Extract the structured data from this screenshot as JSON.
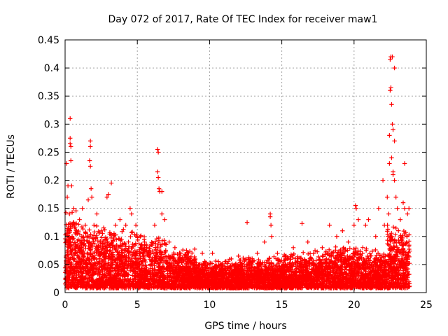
{
  "chart_data": {
    "type": "scatter",
    "title": "Day 072 of 2017, Rate Of TEC Index for receiver maw1",
    "xlabel": "GPS time / hours",
    "ylabel": "ROTI / TECUs",
    "xlim": [
      0,
      25
    ],
    "ylim": [
      0,
      0.45
    ],
    "x_ticks": [
      0,
      5,
      10,
      15,
      20,
      25
    ],
    "y_ticks": [
      0,
      0.05,
      0.1,
      0.15,
      0.2,
      0.25,
      0.3,
      0.35,
      0.4,
      0.45
    ],
    "x_tick_labels": [
      "0",
      "5",
      "10",
      "15",
      "20",
      "25"
    ],
    "y_tick_labels": [
      "0",
      "0.05",
      "0.1",
      "0.15",
      "0.2",
      "0.25",
      "0.3",
      "0.35",
      "0.4",
      "0.45"
    ],
    "grid": true,
    "marker": "+",
    "marker_color": "#ff0000",
    "series": [
      {
        "name": "ROTI",
        "points": [
          [
            0.1,
            0.23
          ],
          [
            0.15,
            0.17
          ],
          [
            0.2,
            0.19
          ],
          [
            0.3,
            0.14
          ],
          [
            0.35,
            0.31
          ],
          [
            0.35,
            0.275
          ],
          [
            0.35,
            0.265
          ],
          [
            0.4,
            0.26
          ],
          [
            0.4,
            0.235
          ],
          [
            0.45,
            0.19
          ],
          [
            0.5,
            0.12
          ],
          [
            0.6,
            0.15
          ],
          [
            0.8,
            0.11
          ],
          [
            1.0,
            0.13
          ],
          [
            1.2,
            0.15
          ],
          [
            1.4,
            0.12
          ],
          [
            1.6,
            0.165
          ],
          [
            1.75,
            0.27
          ],
          [
            1.75,
            0.26
          ],
          [
            1.7,
            0.235
          ],
          [
            1.75,
            0.225
          ],
          [
            1.8,
            0.185
          ],
          [
            1.85,
            0.17
          ],
          [
            2.0,
            0.12
          ],
          [
            2.2,
            0.14
          ],
          [
            2.5,
            0.11
          ],
          [
            2.9,
            0.17
          ],
          [
            3.0,
            0.175
          ],
          [
            3.2,
            0.195
          ],
          [
            3.5,
            0.12
          ],
          [
            3.8,
            0.13
          ],
          [
            4.2,
            0.12
          ],
          [
            4.5,
            0.15
          ],
          [
            4.6,
            0.14
          ],
          [
            4.9,
            0.12
          ],
          [
            5.2,
            0.1
          ],
          [
            5.5,
            0.09
          ],
          [
            6.2,
            0.12
          ],
          [
            6.4,
            0.255
          ],
          [
            6.45,
            0.25
          ],
          [
            6.4,
            0.215
          ],
          [
            6.45,
            0.205
          ],
          [
            6.5,
            0.185
          ],
          [
            6.55,
            0.18
          ],
          [
            6.7,
            0.18
          ],
          [
            6.7,
            0.14
          ],
          [
            6.9,
            0.13
          ],
          [
            7.2,
            0.09
          ],
          [
            7.6,
            0.08
          ],
          [
            8.0,
            0.07
          ],
          [
            8.4,
            0.075
          ],
          [
            9.0,
            0.06
          ],
          [
            9.5,
            0.07
          ],
          [
            10.2,
            0.07
          ],
          [
            10.8,
            0.05
          ],
          [
            11.5,
            0.06
          ],
          [
            12.0,
            0.065
          ],
          [
            12.6,
            0.125
          ],
          [
            12.8,
            0.06
          ],
          [
            13.3,
            0.07
          ],
          [
            13.8,
            0.09
          ],
          [
            14.2,
            0.14
          ],
          [
            14.2,
            0.135
          ],
          [
            14.25,
            0.12
          ],
          [
            14.3,
            0.1
          ],
          [
            14.7,
            0.07
          ],
          [
            15.3,
            0.065
          ],
          [
            15.8,
            0.08
          ],
          [
            16.4,
            0.123
          ],
          [
            16.8,
            0.09
          ],
          [
            17.3,
            0.075
          ],
          [
            17.8,
            0.08
          ],
          [
            18.3,
            0.12
          ],
          [
            18.8,
            0.1
          ],
          [
            19.2,
            0.11
          ],
          [
            19.6,
            0.09
          ],
          [
            20.0,
            0.12
          ],
          [
            20.1,
            0.155
          ],
          [
            20.15,
            0.15
          ],
          [
            20.3,
            0.13
          ],
          [
            20.8,
            0.12
          ],
          [
            21.0,
            0.13
          ],
          [
            21.5,
            0.1
          ],
          [
            21.7,
            0.15
          ],
          [
            22.0,
            0.2
          ],
          [
            22.1,
            0.12
          ],
          [
            22.3,
            0.17
          ],
          [
            22.4,
            0.14
          ],
          [
            22.45,
            0.23
          ],
          [
            22.45,
            0.28
          ],
          [
            22.5,
            0.36
          ],
          [
            22.55,
            0.365
          ],
          [
            22.5,
            0.415
          ],
          [
            22.55,
            0.42
          ],
          [
            22.65,
            0.42
          ],
          [
            22.6,
            0.335
          ],
          [
            22.65,
            0.3
          ],
          [
            22.7,
            0.29
          ],
          [
            22.8,
            0.4
          ],
          [
            22.8,
            0.27
          ],
          [
            22.6,
            0.24
          ],
          [
            22.7,
            0.215
          ],
          [
            22.7,
            0.21
          ],
          [
            22.8,
            0.2
          ],
          [
            22.9,
            0.17
          ],
          [
            23.0,
            0.15
          ],
          [
            23.2,
            0.13
          ],
          [
            23.4,
            0.16
          ],
          [
            23.5,
            0.23
          ],
          [
            23.5,
            0.15
          ],
          [
            23.7,
            0.14
          ],
          [
            23.8,
            0.15
          ]
        ]
      }
    ]
  }
}
